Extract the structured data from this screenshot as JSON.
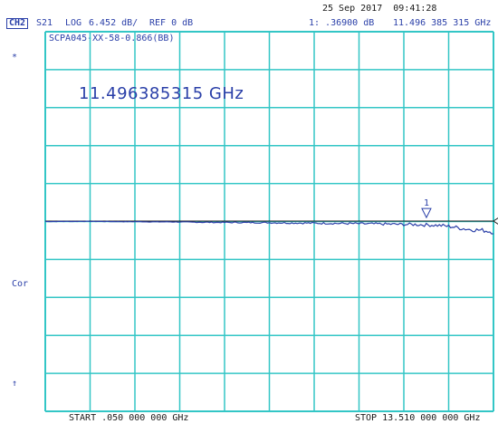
{
  "header": {
    "date": "25 Sep 2017",
    "time": "09:41:28",
    "channel": "CH2",
    "param": "S21",
    "format": "LOG",
    "scale": "6.452 dB/",
    "ref": "REF 0 dB",
    "marker_value": "1: .36900 dB",
    "marker_freq": "11.496 385 315 GHz"
  },
  "trace_title": "SCPA045-XX-58-0.866(BB)",
  "marker_readout": "11.496385315 GHz",
  "marker_label": "1",
  "side_labels": {
    "star": "*",
    "cor": "Cor",
    "arrow": "↑"
  },
  "footer": {
    "start": "START .050 000 000 GHz",
    "stop": "STOP 13.510 000 000 GHz"
  },
  "colors": {
    "grid": "#33c6c6",
    "trace": "#2a3fa8",
    "text": "#2a3fa8"
  },
  "chart_data": {
    "type": "line",
    "x_start_ghz": 0.05,
    "x_stop_ghz": 13.51,
    "ylim_div": [
      -5,
      5
    ],
    "grid": true,
    "marker_x_ghz": 11.496385315,
    "marker_y_db": 0.369,
    "series": [
      {
        "values": [
          0.0,
          0.0,
          0.02,
          0.02,
          0.03,
          0.02,
          0.01,
          -0.01,
          -0.03,
          -0.02,
          -0.04,
          -0.06,
          -0.05,
          -0.08,
          -0.1,
          -0.12,
          -0.14,
          -0.15,
          -0.16,
          -0.17,
          -0.18,
          -0.19,
          -0.2,
          -0.22,
          -0.24,
          -0.25,
          -0.27,
          -0.29,
          -0.3,
          -0.33,
          -0.35,
          -0.38,
          -0.4,
          -0.42,
          -0.45,
          -0.48,
          -0.5,
          -0.55,
          -0.6,
          -0.7,
          -0.9,
          -1.2,
          -1.4,
          -1.5,
          -1.8
        ]
      }
    ]
  }
}
